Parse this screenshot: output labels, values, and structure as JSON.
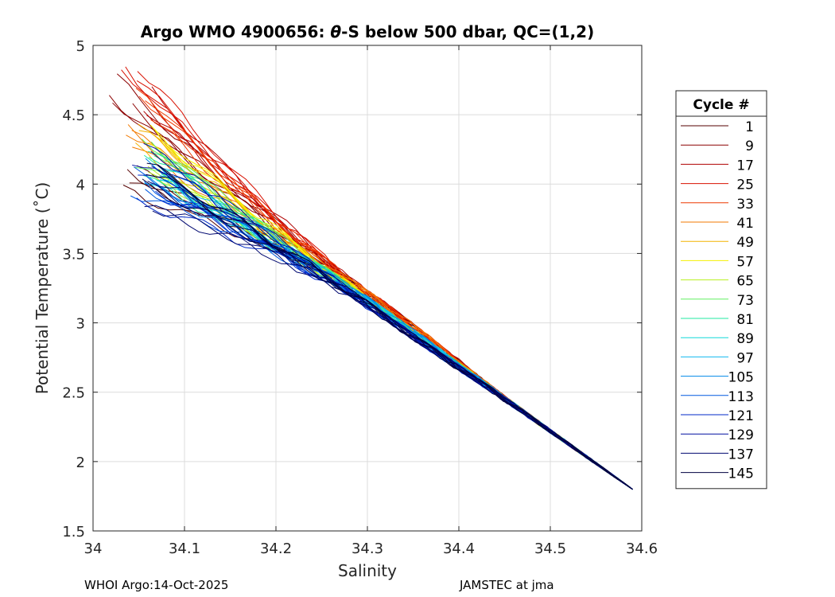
{
  "chart_data": {
    "type": "line",
    "title_prefix": "Argo WMO 4900656: ",
    "title_theta": "θ",
    "title_suffix": "-S below 500 dbar,  QC=(1,2)",
    "xlabel": "Salinity",
    "ylabel": "Potential Temperature (˚C)",
    "xlim": [
      34.0,
      34.6
    ],
    "ylim": [
      1.5,
      5.0
    ],
    "xticks": [
      "34",
      "34.1",
      "34.2",
      "34.3",
      "34.4",
      "34.5",
      "34.6"
    ],
    "xtick_values": [
      34.0,
      34.1,
      34.2,
      34.3,
      34.4,
      34.5,
      34.6
    ],
    "yticks": [
      "1.5",
      "2",
      "2.5",
      "3",
      "3.5",
      "4",
      "4.5",
      "5"
    ],
    "ytick_values": [
      1.5,
      2.0,
      2.5,
      3.0,
      3.5,
      4.0,
      4.5,
      5.0
    ],
    "grid": true,
    "legend": {
      "title": "Cycle #",
      "placement": "outside-right",
      "entries": [
        {
          "label": "1",
          "color": "#550000"
        },
        {
          "label": "9",
          "color": "#8b0000"
        },
        {
          "label": "17",
          "color": "#b00000"
        },
        {
          "label": "25",
          "color": "#d81000"
        },
        {
          "label": "33",
          "color": "#ee3800"
        },
        {
          "label": "41",
          "color": "#f27a00"
        },
        {
          "label": "49",
          "color": "#f4b400"
        },
        {
          "label": "57",
          "color": "#f4f000"
        },
        {
          "label": "65",
          "color": "#b8f020"
        },
        {
          "label": "73",
          "color": "#60f060"
        },
        {
          "label": "81",
          "color": "#20e8a0"
        },
        {
          "label": "89",
          "color": "#10d8d8"
        },
        {
          "label": "97",
          "color": "#10b8f0"
        },
        {
          "label": "105",
          "color": "#0088e8"
        },
        {
          "label": "113",
          "color": "#0058e0"
        },
        {
          "label": "121",
          "color": "#0028c8"
        },
        {
          "label": "129",
          "color": "#0010a0"
        },
        {
          "label": "137",
          "color": "#000870"
        },
        {
          "label": "145",
          "color": "#000040"
        }
      ]
    },
    "series_shape": {
      "description": "theta-S profiles below 500 dbar, one per cycle",
      "common_deep_end": [
        34.59,
        1.8
      ],
      "shallow_starts": [
        [
          34.04,
          4.0
        ],
        [
          34.03,
          4.65
        ],
        [
          34.05,
          4.55
        ],
        [
          34.04,
          4.74
        ],
        [
          34.06,
          4.55
        ],
        [
          34.05,
          4.38
        ],
        [
          34.06,
          4.35
        ],
        [
          34.07,
          4.3
        ],
        [
          34.07,
          4.2
        ],
        [
          34.06,
          4.22
        ],
        [
          34.07,
          4.15
        ],
        [
          34.07,
          4.12
        ],
        [
          34.08,
          4.1
        ],
        [
          34.06,
          4.1
        ],
        [
          34.05,
          4.05
        ],
        [
          34.06,
          4.0
        ],
        [
          34.05,
          4.2
        ],
        [
          34.06,
          3.95
        ],
        [
          34.06,
          4.08
        ]
      ]
    }
  },
  "footer": {
    "left": "WHOI Argo:14-Oct-2025",
    "right": "JAMSTEC at jma"
  }
}
